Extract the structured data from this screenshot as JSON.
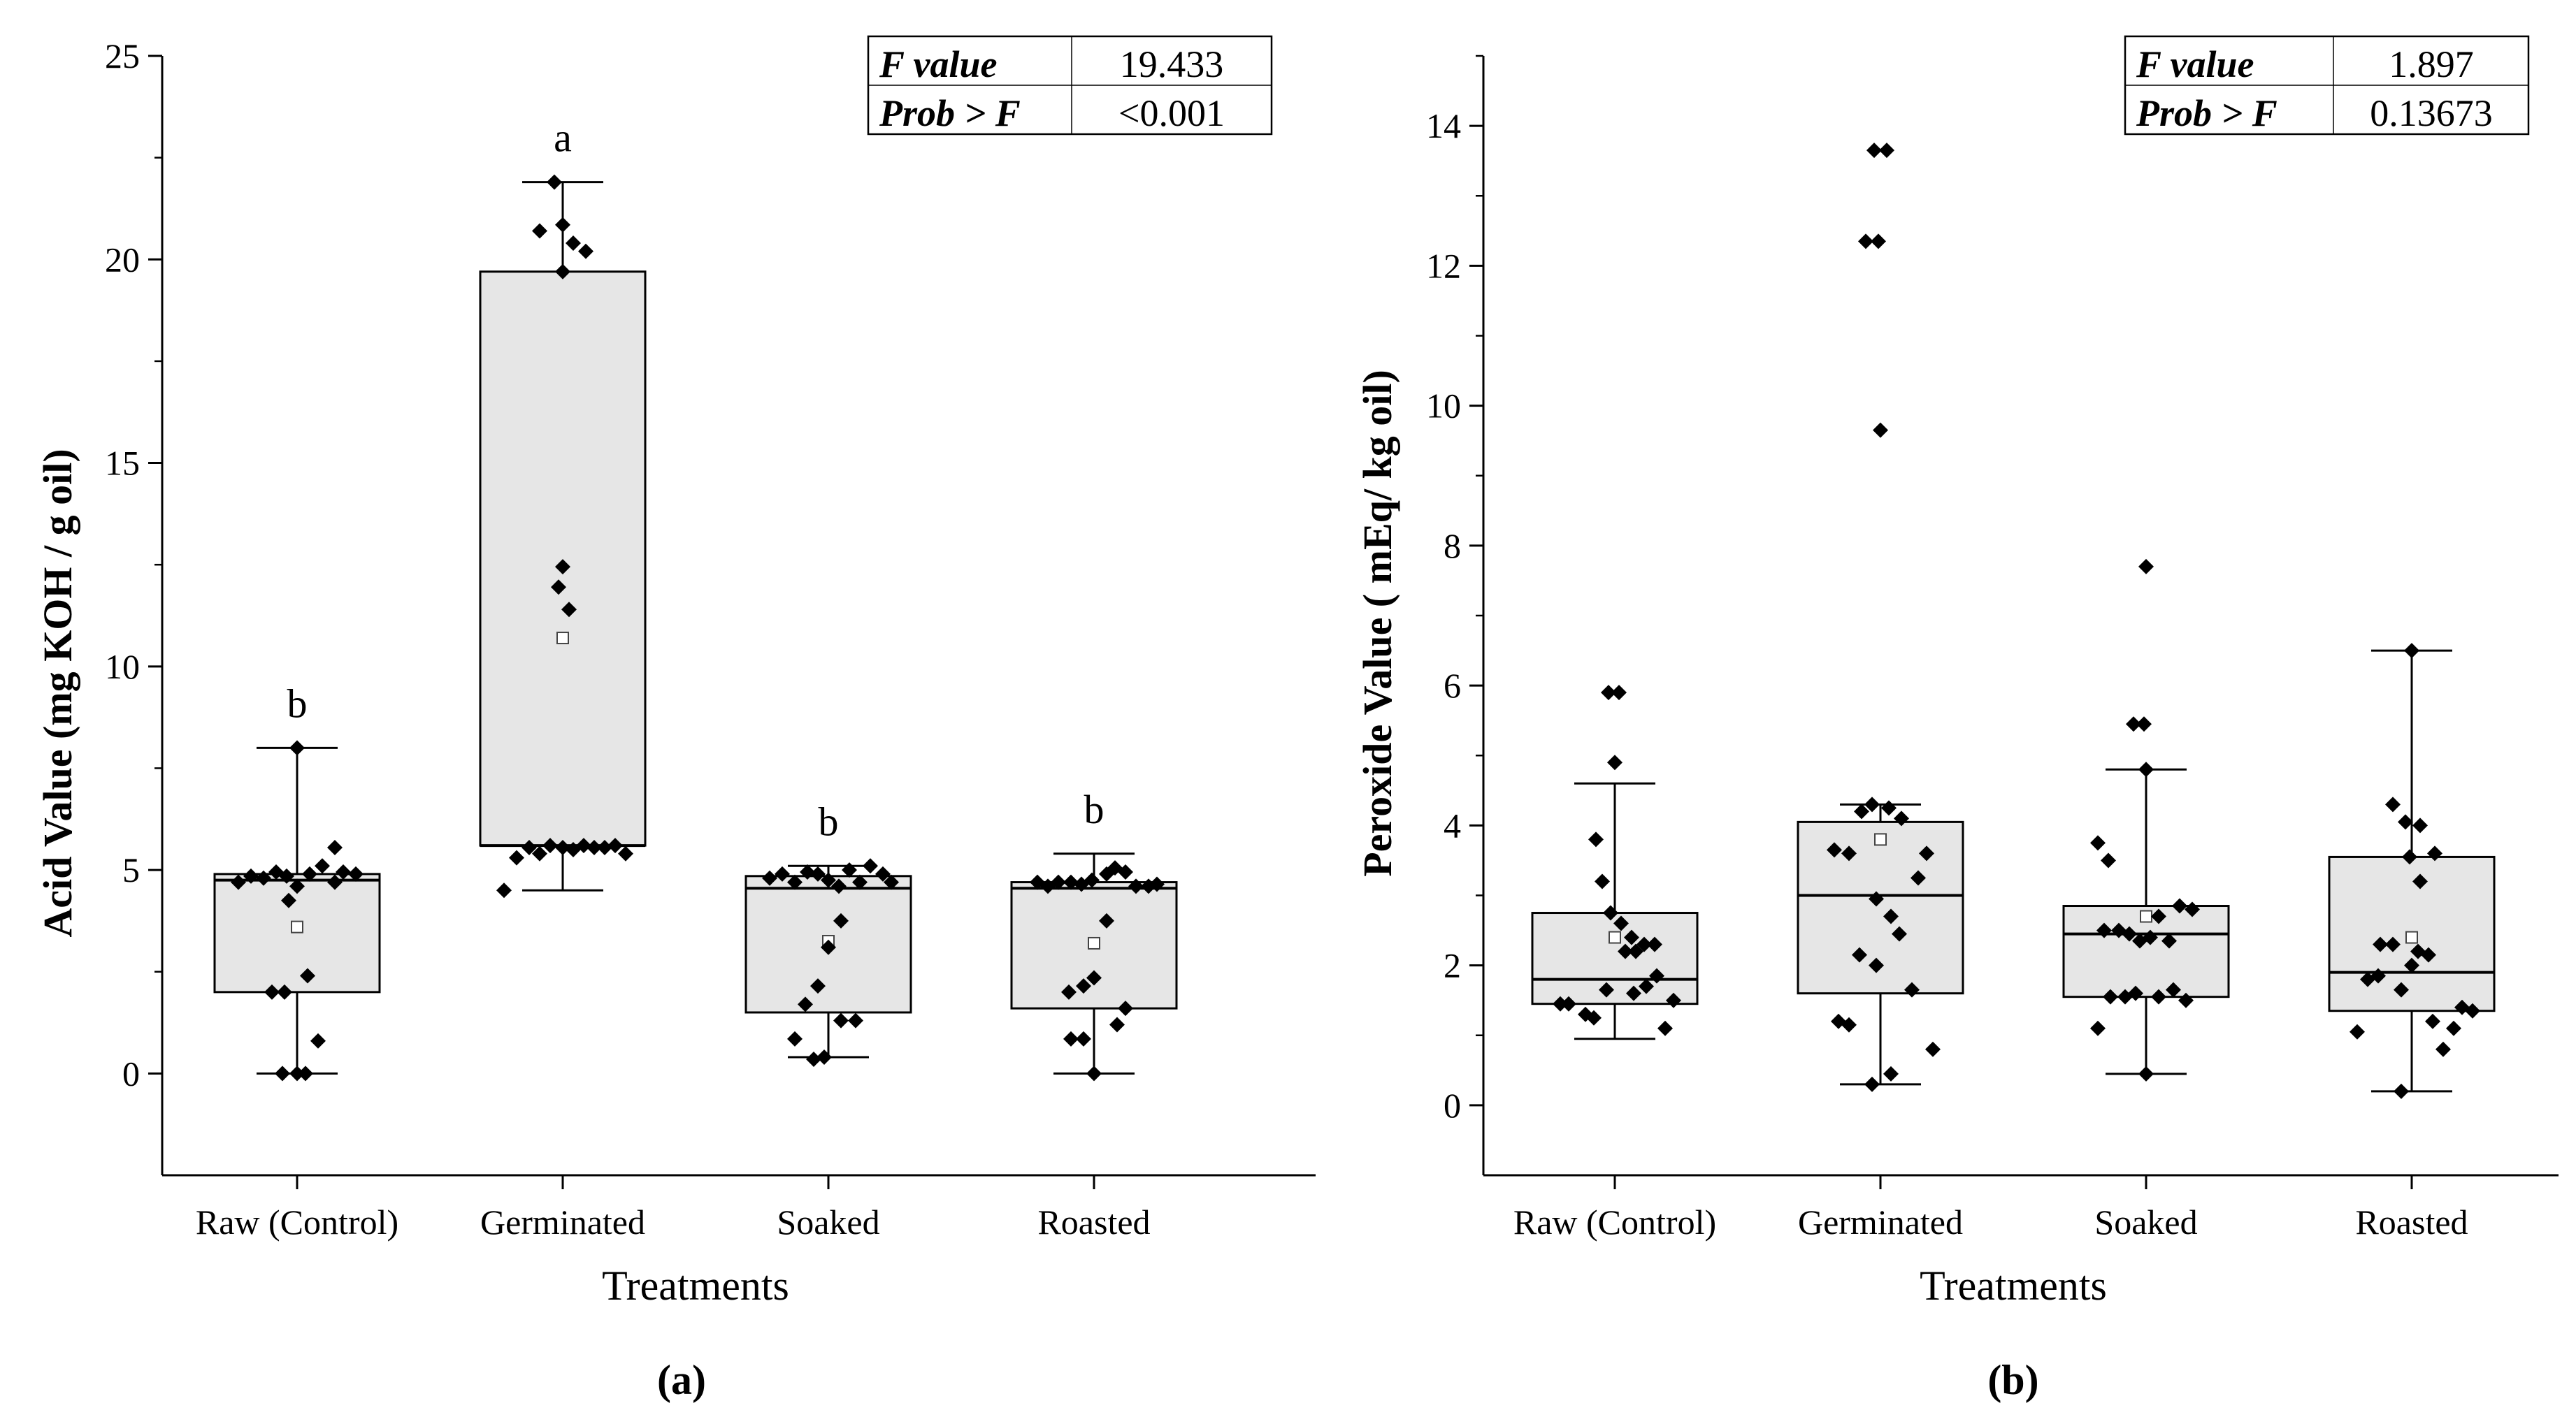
{
  "chart_data": [
    {
      "type": "box",
      "panel_label": "(a)",
      "xlabel": "Treatments",
      "ylabel": "Acid Value (mg KOH / g oil)",
      "ylim": [
        -2.5,
        25
      ],
      "yticks": [
        "0",
        "5",
        "10",
        "15",
        "20",
        "25"
      ],
      "ytick_values": [
        0,
        5,
        10,
        15,
        20,
        25
      ],
      "categories": [
        "Raw (Control)",
        "Germinated",
        "Soaked",
        "Roasted"
      ],
      "stats_table": {
        "rows": [
          {
            "key": "F value",
            "value": "19.433"
          },
          {
            "key": "Prob > F",
            "value": "<0.001"
          }
        ]
      },
      "groups": [
        {
          "name": "Raw (Control)",
          "letter": "b",
          "whisker_low": 0,
          "q1": 2.0,
          "median": 4.75,
          "q3": 4.9,
          "whisker_high": 8.0,
          "mean": 3.6,
          "points": [
            [
              -0.28,
              4.7
            ],
            [
              -0.22,
              4.85
            ],
            [
              -0.16,
              4.8
            ],
            [
              -0.1,
              4.95
            ],
            [
              -0.05,
              4.85
            ],
            [
              0,
              4.6
            ],
            [
              0.06,
              4.9
            ],
            [
              0.12,
              5.1
            ],
            [
              0.18,
              4.7
            ],
            [
              0.22,
              4.95
            ],
            [
              0.28,
              4.9
            ],
            [
              0.18,
              5.55
            ],
            [
              -0.04,
              4.25
            ],
            [
              0.05,
              2.4
            ],
            [
              0.1,
              0.8
            ],
            [
              -0.12,
              2.0
            ],
            [
              -0.06,
              2.0
            ],
            [
              0.0,
              8.0
            ],
            [
              -0.07,
              0.0
            ],
            [
              0.0,
              0.0
            ],
            [
              0.04,
              0.0
            ]
          ]
        },
        {
          "name": "Germinated",
          "letter": "a",
          "whisker_low": 4.5,
          "q1": 5.6,
          "median": 5.6,
          "q3": 19.7,
          "whisker_high": 21.9,
          "mean": 10.7,
          "points": [
            [
              -0.28,
              4.5
            ],
            [
              -0.22,
              5.3
            ],
            [
              -0.16,
              5.55
            ],
            [
              -0.11,
              5.4
            ],
            [
              -0.06,
              5.6
            ],
            [
              0.0,
              5.55
            ],
            [
              0.05,
              5.5
            ],
            [
              0.1,
              5.6
            ],
            [
              0.15,
              5.55
            ],
            [
              0.2,
              5.55
            ],
            [
              0.25,
              5.6
            ],
            [
              0.3,
              5.4
            ],
            [
              -0.04,
              21.9
            ],
            [
              -0.11,
              20.7
            ],
            [
              0.0,
              20.85
            ],
            [
              0.05,
              20.4
            ],
            [
              0.11,
              20.2
            ],
            [
              0.0,
              19.7
            ],
            [
              0.0,
              12.45
            ],
            [
              -0.02,
              11.95
            ],
            [
              0.03,
              11.4
            ]
          ]
        },
        {
          "name": "Soaked",
          "letter": "b",
          "whisker_low": 0.4,
          "q1": 1.5,
          "median": 4.55,
          "q3": 4.85,
          "whisker_high": 5.1,
          "mean": 3.25,
          "points": [
            [
              -0.28,
              4.8
            ],
            [
              -0.22,
              4.9
            ],
            [
              -0.16,
              4.7
            ],
            [
              -0.1,
              4.95
            ],
            [
              -0.05,
              4.9
            ],
            [
              0.0,
              4.75
            ],
            [
              0.05,
              4.6
            ],
            [
              0.1,
              5.0
            ],
            [
              0.15,
              4.7
            ],
            [
              0.2,
              5.1
            ],
            [
              0.26,
              4.9
            ],
            [
              0.3,
              4.7
            ],
            [
              0.06,
              3.75
            ],
            [
              0.0,
              3.1
            ],
            [
              -0.05,
              2.15
            ],
            [
              -0.11,
              1.7
            ],
            [
              -0.16,
              0.85
            ],
            [
              0.06,
              1.3
            ],
            [
              0.13,
              1.3
            ],
            [
              -0.02,
              0.4
            ],
            [
              -0.07,
              0.35
            ]
          ]
        },
        {
          "name": "Roasted",
          "letter": "b",
          "whisker_low": 0.0,
          "q1": 1.6,
          "median": 4.55,
          "q3": 4.7,
          "whisker_high": 5.4,
          "mean": 3.2,
          "points": [
            [
              -0.27,
              4.7
            ],
            [
              -0.22,
              4.6
            ],
            [
              -0.17,
              4.7
            ],
            [
              -0.11,
              4.7
            ],
            [
              -0.06,
              4.65
            ],
            [
              -0.01,
              4.75
            ],
            [
              0.06,
              4.9
            ],
            [
              0.1,
              5.05
            ],
            [
              0.15,
              4.95
            ],
            [
              0.2,
              4.6
            ],
            [
              0.26,
              4.6
            ],
            [
              0.3,
              4.65
            ],
            [
              0.06,
              3.75
            ],
            [
              -0.05,
              2.15
            ],
            [
              -0.12,
              2.0
            ],
            [
              0.0,
              2.35
            ],
            [
              0.15,
              1.6
            ],
            [
              0.11,
              1.2
            ],
            [
              -0.11,
              0.85
            ],
            [
              -0.05,
              0.85
            ],
            [
              0.0,
              0.0
            ]
          ]
        }
      ]
    },
    {
      "type": "box",
      "panel_label": "(b)",
      "xlabel": "Treatments",
      "ylabel": "Peroxide Value ( mEq/ kg oil)",
      "ylim": [
        -1,
        15
      ],
      "yticks": [
        "0",
        "2",
        "4",
        "6",
        "8",
        "10",
        "12",
        "14"
      ],
      "ytick_values": [
        0,
        2,
        4,
        6,
        8,
        10,
        12,
        14
      ],
      "categories": [
        "Raw (Control)",
        "Germinated",
        "Soaked",
        "Roasted"
      ],
      "stats_table": {
        "rows": [
          {
            "key": "F value",
            "value": "1.897"
          },
          {
            "key": "Prob > F",
            "value": "0.13673"
          }
        ]
      },
      "groups": [
        {
          "name": "Raw (Control)",
          "whisker_low": 0.95,
          "q1": 1.45,
          "median": 1.8,
          "q3": 2.75,
          "whisker_high": 4.6,
          "mean": 2.4,
          "points": [
            [
              -0.03,
              5.9
            ],
            [
              0.02,
              5.9
            ],
            [
              0.0,
              4.9
            ],
            [
              -0.09,
              3.8
            ],
            [
              -0.06,
              3.2
            ],
            [
              -0.02,
              2.75
            ],
            [
              0.03,
              2.6
            ],
            [
              0.08,
              2.4
            ],
            [
              0.14,
              2.3
            ],
            [
              0.19,
              2.3
            ],
            [
              0.05,
              2.2
            ],
            [
              0.1,
              2.2
            ],
            [
              -0.22,
              1.45
            ],
            [
              -0.26,
              1.45
            ],
            [
              -0.14,
              1.3
            ],
            [
              -0.1,
              1.25
            ],
            [
              0.09,
              1.6
            ],
            [
              0.15,
              1.7
            ],
            [
              0.2,
              1.85
            ],
            [
              -0.04,
              1.65
            ],
            [
              0.24,
              1.1
            ],
            [
              0.28,
              1.5
            ]
          ]
        },
        {
          "name": "Germinated",
          "whisker_low": 0.3,
          "q1": 1.6,
          "median": 3.0,
          "q3": 4.05,
          "whisker_high": 4.3,
          "mean": 3.8,
          "points": [
            [
              -0.03,
              13.65
            ],
            [
              0.03,
              13.65
            ],
            [
              -0.07,
              12.35
            ],
            [
              -0.01,
              12.35
            ],
            [
              0.0,
              9.65
            ],
            [
              -0.22,
              3.65
            ],
            [
              -0.15,
              3.6
            ],
            [
              -0.09,
              4.2
            ],
            [
              -0.04,
              4.3
            ],
            [
              0.04,
              4.25
            ],
            [
              0.1,
              4.1
            ],
            [
              0.22,
              3.6
            ],
            [
              0.18,
              3.25
            ],
            [
              0.05,
              2.7
            ],
            [
              0.09,
              2.45
            ],
            [
              -0.02,
              2.95
            ],
            [
              -0.1,
              2.15
            ],
            [
              -0.02,
              2.0
            ],
            [
              0.15,
              1.65
            ],
            [
              -0.2,
              1.2
            ],
            [
              -0.15,
              1.15
            ],
            [
              -0.04,
              0.3
            ],
            [
              0.05,
              0.45
            ],
            [
              0.25,
              0.8
            ]
          ]
        },
        {
          "name": "Soaked",
          "whisker_low": 0.45,
          "q1": 1.55,
          "median": 2.45,
          "q3": 2.85,
          "whisker_high": 4.8,
          "mean": 2.7,
          "points": [
            [
              0.0,
              7.7
            ],
            [
              -0.06,
              5.45
            ],
            [
              -0.01,
              5.45
            ],
            [
              0.0,
              4.8
            ],
            [
              -0.23,
              3.75
            ],
            [
              -0.18,
              3.5
            ],
            [
              -0.2,
              2.5
            ],
            [
              -0.13,
              2.5
            ],
            [
              -0.08,
              2.45
            ],
            [
              -0.03,
              2.35
            ],
            [
              0.02,
              2.4
            ],
            [
              0.06,
              2.7
            ],
            [
              0.11,
              2.35
            ],
            [
              0.16,
              2.85
            ],
            [
              0.22,
              2.8
            ],
            [
              -0.17,
              1.55
            ],
            [
              -0.1,
              1.55
            ],
            [
              -0.05,
              1.6
            ],
            [
              0.06,
              1.55
            ],
            [
              0.13,
              1.65
            ],
            [
              0.19,
              1.5
            ],
            [
              -0.23,
              1.1
            ],
            [
              0.0,
              0.45
            ]
          ]
        },
        {
          "name": "Roasted",
          "whisker_low": 0.2,
          "q1": 1.35,
          "median": 1.9,
          "q3": 3.55,
          "whisker_high": 6.5,
          "mean": 2.4,
          "points": [
            [
              0.0,
              6.5
            ],
            [
              -0.09,
              4.3
            ],
            [
              -0.03,
              4.05
            ],
            [
              0.04,
              4.0
            ],
            [
              0.11,
              3.6
            ],
            [
              -0.01,
              3.55
            ],
            [
              0.04,
              3.2
            ],
            [
              -0.15,
              2.3
            ],
            [
              -0.09,
              2.3
            ],
            [
              0.03,
              2.2
            ],
            [
              0.08,
              2.15
            ],
            [
              -0.26,
              1.05
            ],
            [
              -0.21,
              1.8
            ],
            [
              -0.16,
              1.85
            ],
            [
              -0.05,
              1.65
            ],
            [
              0.0,
              2.0
            ],
            [
              0.1,
              1.2
            ],
            [
              0.15,
              0.8
            ],
            [
              0.2,
              1.1
            ],
            [
              0.24,
              1.4
            ],
            [
              0.29,
              1.35
            ],
            [
              -0.05,
              0.2
            ]
          ]
        }
      ]
    }
  ]
}
